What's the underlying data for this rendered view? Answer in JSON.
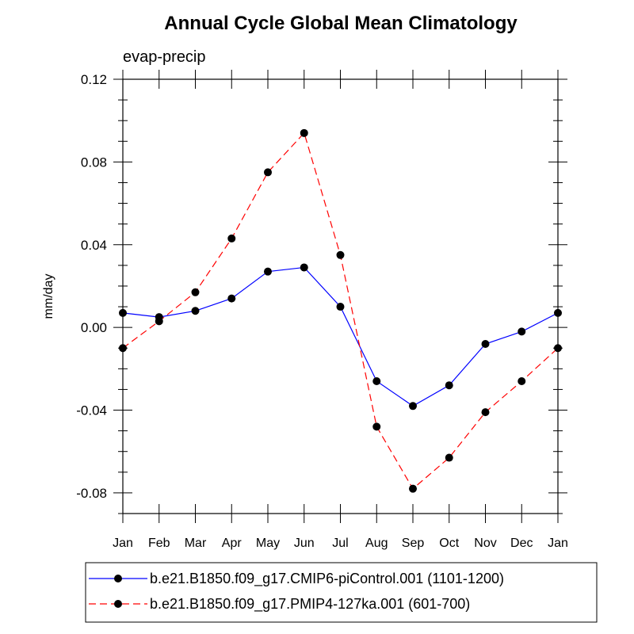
{
  "chart_data": {
    "type": "line",
    "title": "Annual Cycle Global Mean Climatology",
    "subtitle": "evap-precip",
    "xlabel": "",
    "ylabel": "mm/day",
    "categories": [
      "Jan",
      "Feb",
      "Mar",
      "Apr",
      "May",
      "Jun",
      "Jul",
      "Aug",
      "Sep",
      "Oct",
      "Nov",
      "Dec",
      "Jan"
    ],
    "ylim": [
      -0.09,
      0.12
    ],
    "yticks": [
      -0.08,
      -0.04,
      0.0,
      0.04,
      0.08,
      0.12
    ],
    "ytick_labels": [
      "-0.08",
      "-0.04",
      "0.00",
      "0.04",
      "0.08",
      "0.12"
    ],
    "grid": false,
    "legend_position": "bottom",
    "series": [
      {
        "name": "b.e21.B1850.f09_g17.CMIP6-piControl.001 (1101-1200)",
        "color": "#0000ff",
        "line_style": "solid",
        "marker": "filled-circle",
        "values": [
          0.007,
          0.005,
          0.008,
          0.014,
          0.027,
          0.029,
          0.01,
          -0.026,
          -0.038,
          -0.028,
          -0.008,
          -0.002,
          0.007
        ]
      },
      {
        "name": "b.e21.B1850.f09_g17.PMIP4-127ka.001 (601-700)",
        "color": "#ff0000",
        "line_style": "dashed",
        "marker": "filled-circle",
        "values": [
          -0.01,
          0.003,
          0.017,
          0.043,
          0.075,
          0.094,
          0.035,
          -0.048,
          -0.078,
          -0.063,
          -0.041,
          -0.026,
          -0.01
        ]
      }
    ]
  }
}
